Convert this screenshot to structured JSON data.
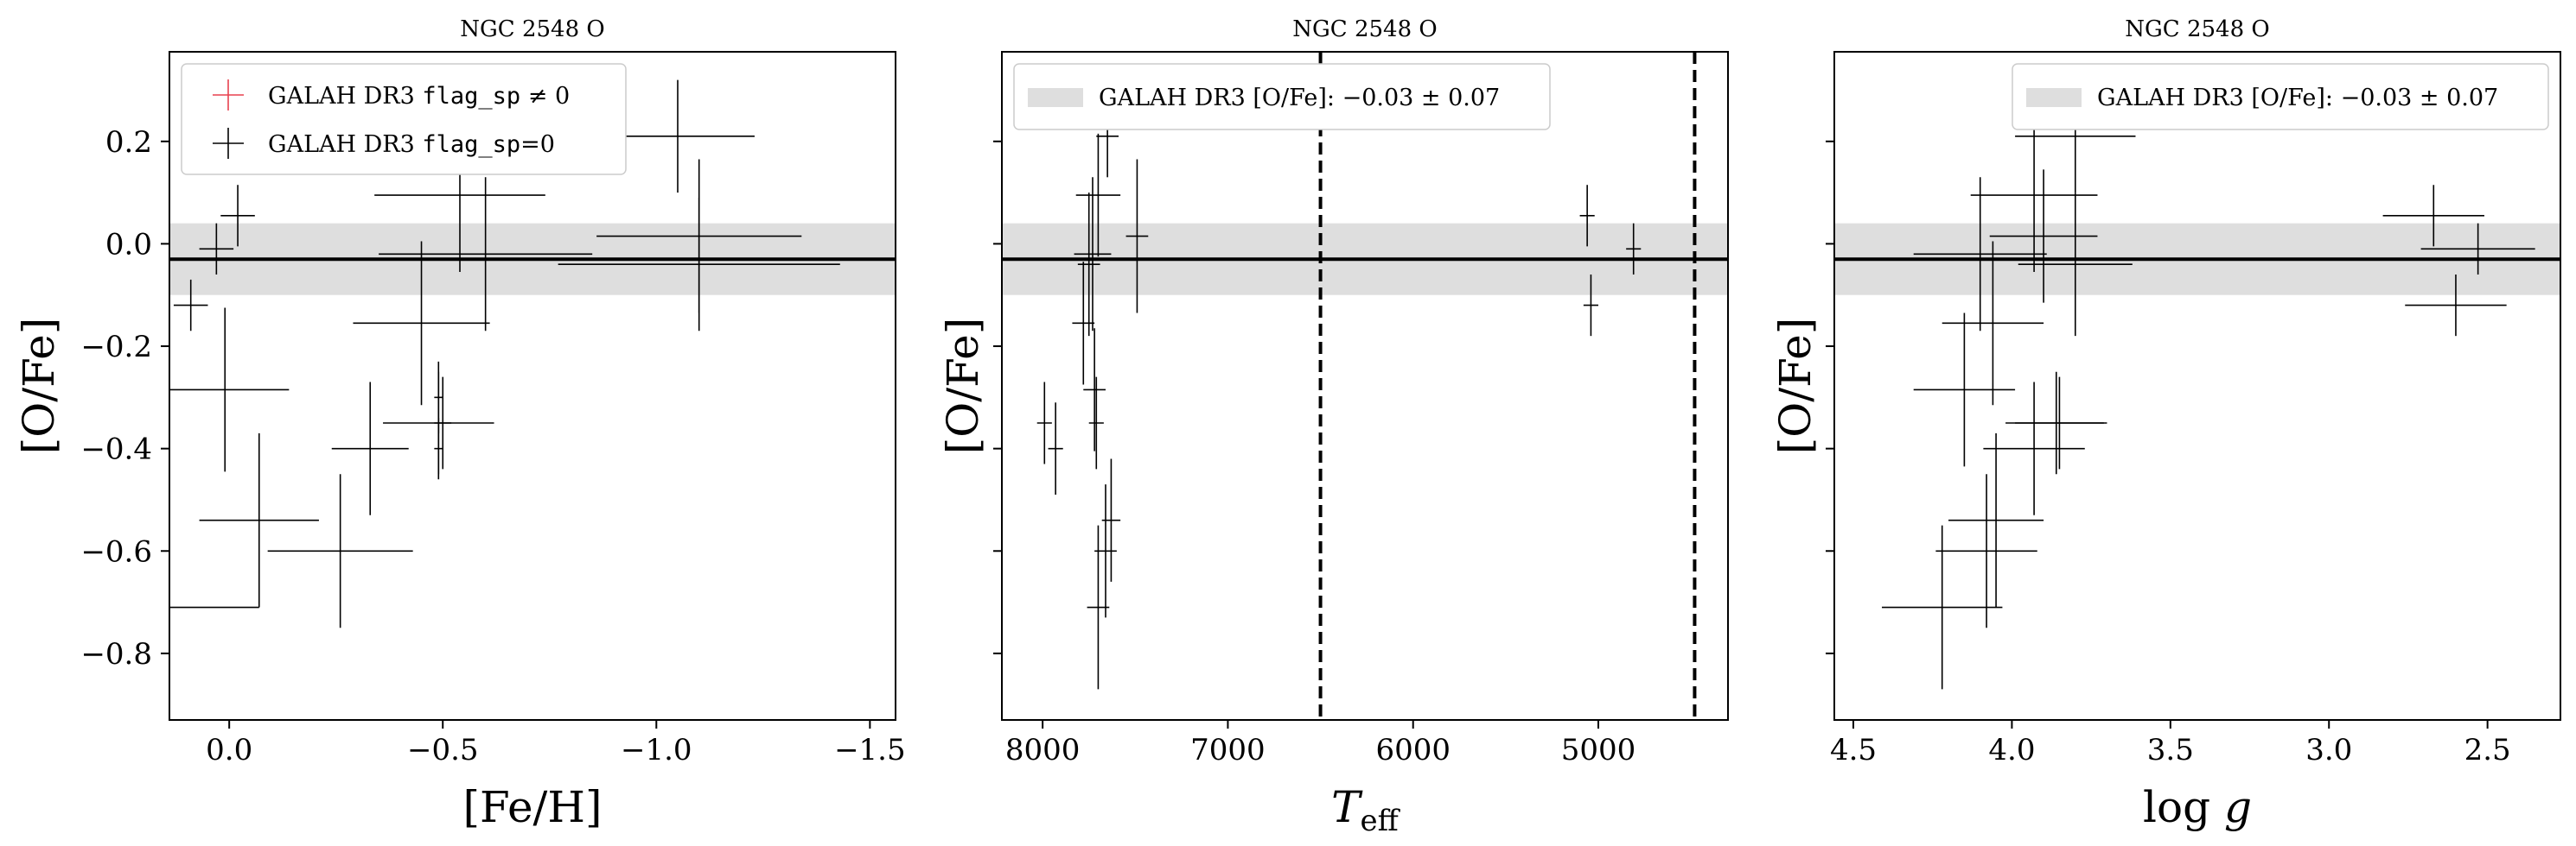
{
  "chart_data": [
    {
      "type": "scatter",
      "title": "NGC 2548 O",
      "xlabel": "[Fe/H]",
      "ylabel": "[O/Fe]",
      "xlim": [
        0.14,
        -1.56
      ],
      "ylim": [
        -0.93,
        0.375
      ],
      "x_inverted": true,
      "xticks": [
        0.0,
        -0.5,
        -1.0,
        -1.5
      ],
      "xtick_labels": [
        "0.0",
        "−0.5",
        "−1.0",
        "−1.5"
      ],
      "yticks": [
        0.2,
        0.0,
        -0.2,
        -0.4,
        -0.6,
        -0.8
      ],
      "ytick_labels": [
        "0.2",
        "0.0",
        "−0.2",
        "−0.4",
        "−0.6",
        "−0.8"
      ],
      "show_ytick_labels": true,
      "reference": {
        "value": -0.03,
        "error": 0.07
      },
      "legend": {
        "placement": "top-left",
        "entries": [
          {
            "pre": "GALAH DR3 ",
            "code": "flag_sp",
            "post": " ≠ 0",
            "color": "#e8414f"
          },
          {
            "pre": "GALAH DR3 ",
            "code": "flag_sp",
            "post": "=0",
            "color": "#000000"
          }
        ]
      },
      "series": [
        {
          "name": "GALAH DR3 flag_sp=0",
          "color": "#000000",
          "points": [
            {
              "x": 0.09,
              "y": -0.12,
              "xerr": 0.04,
              "yerr": 0.05
            },
            {
              "x": 0.03,
              "y": -0.01,
              "xerr": 0.04,
              "yerr": 0.05
            },
            {
              "x": -0.02,
              "y": 0.055,
              "xerr": 0.04,
              "yerr": 0.06
            },
            {
              "x": 0.01,
              "y": -0.285,
              "xerr": 0.15,
              "yerr": 0.16
            },
            {
              "x": 0.14,
              "y": -0.71,
              "xerr": 0.21,
              "yerr": 0.16
            },
            {
              "x": -0.07,
              "y": -0.54,
              "xerr": 0.14,
              "yerr": 0.17
            },
            {
              "x": -0.26,
              "y": -0.6,
              "xerr": 0.17,
              "yerr": 0.15
            },
            {
              "x": -0.33,
              "y": -0.4,
              "xerr": 0.09,
              "yerr": 0.13
            },
            {
              "x": -0.45,
              "y": -0.155,
              "xerr": 0.16,
              "yerr": 0.16
            },
            {
              "x": -0.49,
              "y": -0.35,
              "xerr": 0.13,
              "yerr": 0.1
            },
            {
              "x": -0.5,
              "y": -0.35,
              "xerr": 0.02,
              "yerr": 0.09
            },
            {
              "x": -0.49,
              "y": -0.3,
              "xerr": 0.01,
              "yerr": 0.07
            },
            {
              "x": -0.49,
              "y": -0.4,
              "xerr": 0.01,
              "yerr": 0.06
            },
            {
              "x": -0.54,
              "y": 0.095,
              "xerr": 0.2,
              "yerr": 0.15
            },
            {
              "x": -0.6,
              "y": -0.02,
              "xerr": 0.25,
              "yerr": 0.15
            },
            {
              "x": -1.05,
              "y": 0.21,
              "xerr": 0.18,
              "yerr": 0.11
            },
            {
              "x": -1.1,
              "y": 0.015,
              "xerr": 0.24,
              "yerr": 0.15
            },
            {
              "x": -1.1,
              "y": -0.04,
              "xerr": 0.33,
              "yerr": 0.13
            }
          ]
        }
      ]
    },
    {
      "type": "scatter",
      "title": "NGC 2548 O",
      "xlabel": "T_eff",
      "ylabel": "[O/Fe]",
      "xlim": [
        8220,
        4300
      ],
      "ylim": [
        -0.93,
        0.375
      ],
      "x_inverted": true,
      "xticks": [
        8000,
        7000,
        6000,
        5000
      ],
      "xtick_labels": [
        "8000",
        "7000",
        "6000",
        "5000"
      ],
      "yticks": [
        0.2,
        0.0,
        -0.2,
        -0.4,
        -0.6,
        -0.8
      ],
      "ytick_labels": [
        "0.2",
        "0.0",
        "−0.2",
        "−0.4",
        "−0.6",
        "−0.8"
      ],
      "show_ytick_labels": false,
      "reference": {
        "value": -0.03,
        "error": 0.07
      },
      "vlines": [
        6500,
        4480
      ],
      "legend": {
        "placement": "top-left",
        "entries": [
          {
            "pre": "GALAH DR3 [O/Fe]: ",
            "math": "−0.03 ± 0.07",
            "patch": true
          }
        ]
      },
      "series": [
        {
          "name": "GALAH DR3 flag_sp=0",
          "color": "#000000",
          "points": [
            {
              "x": 7990,
              "y": -0.35,
              "xerr": 40,
              "yerr": 0.08
            },
            {
              "x": 7930,
              "y": -0.4,
              "xerr": 40,
              "yerr": 0.09
            },
            {
              "x": 7650,
              "y": 0.21,
              "xerr": 60,
              "yerr": 0.08
            },
            {
              "x": 7700,
              "y": 0.095,
              "xerr": 120,
              "yerr": 0.12
            },
            {
              "x": 7730,
              "y": -0.02,
              "xerr": 100,
              "yerr": 0.15
            },
            {
              "x": 7490,
              "y": 0.015,
              "xerr": 60,
              "yerr": 0.15
            },
            {
              "x": 7750,
              "y": -0.04,
              "xerr": 60,
              "yerr": 0.14
            },
            {
              "x": 7780,
              "y": -0.155,
              "xerr": 60,
              "yerr": 0.12
            },
            {
              "x": 7720,
              "y": -0.285,
              "xerr": 60,
              "yerr": 0.12
            },
            {
              "x": 7710,
              "y": -0.35,
              "xerr": 40,
              "yerr": 0.09
            },
            {
              "x": 7630,
              "y": -0.54,
              "xerr": 50,
              "yerr": 0.12
            },
            {
              "x": 7660,
              "y": -0.6,
              "xerr": 60,
              "yerr": 0.13
            },
            {
              "x": 7700,
              "y": -0.71,
              "xerr": 60,
              "yerr": 0.16
            },
            {
              "x": 5060,
              "y": 0.055,
              "xerr": 40,
              "yerr": 0.06
            },
            {
              "x": 4810,
              "y": -0.01,
              "xerr": 40,
              "yerr": 0.05
            },
            {
              "x": 5040,
              "y": -0.12,
              "xerr": 40,
              "yerr": 0.06
            }
          ]
        }
      ]
    },
    {
      "type": "scatter",
      "title": "NGC 2548 O",
      "xlabel": "log g",
      "ylabel": "[O/Fe]",
      "xlim": [
        4.56,
        2.27
      ],
      "ylim": [
        -0.93,
        0.375
      ],
      "x_inverted": true,
      "xticks": [
        4.5,
        4.0,
        3.5,
        3.0,
        2.5
      ],
      "xtick_labels": [
        "4.5",
        "4.0",
        "3.5",
        "3.0",
        "2.5"
      ],
      "yticks": [
        0.2,
        0.0,
        -0.2,
        -0.4,
        -0.6,
        -0.8
      ],
      "ytick_labels": [
        "0.2",
        "0.0",
        "−0.2",
        "−0.4",
        "−0.6",
        "−0.8"
      ],
      "show_ytick_labels": false,
      "reference": {
        "value": -0.03,
        "error": 0.07
      },
      "legend": {
        "placement": "top-right",
        "entries": [
          {
            "pre": "GALAH DR3 [O/Fe]: ",
            "math": "−0.03 ± 0.07",
            "patch": true
          }
        ]
      },
      "series": [
        {
          "name": "GALAH DR3 flag_sp=0",
          "color": "#000000",
          "points": [
            {
              "x": 4.22,
              "y": -0.71,
              "xerr": 0.19,
              "yerr": 0.16
            },
            {
              "x": 4.08,
              "y": -0.6,
              "xerr": 0.16,
              "yerr": 0.15
            },
            {
              "x": 4.05,
              "y": -0.54,
              "xerr": 0.15,
              "yerr": 0.17
            },
            {
              "x": 4.15,
              "y": -0.285,
              "xerr": 0.16,
              "yerr": 0.15
            },
            {
              "x": 4.06,
              "y": -0.155,
              "xerr": 0.16,
              "yerr": 0.16
            },
            {
              "x": 3.93,
              "y": -0.4,
              "xerr": 0.16,
              "yerr": 0.13
            },
            {
              "x": 3.86,
              "y": -0.35,
              "xerr": 0.16,
              "yerr": 0.1
            },
            {
              "x": 3.85,
              "y": -0.35,
              "xerr": 0.14,
              "yerr": 0.09
            },
            {
              "x": 3.8,
              "y": -0.04,
              "xerr": 0.18,
              "yerr": 0.14
            },
            {
              "x": 4.1,
              "y": -0.02,
              "xerr": 0.21,
              "yerr": 0.15
            },
            {
              "x": 3.9,
              "y": 0.015,
              "xerr": 0.17,
              "yerr": 0.13
            },
            {
              "x": 3.93,
              "y": 0.095,
              "xerr": 0.2,
              "yerr": 0.15
            },
            {
              "x": 3.8,
              "y": 0.21,
              "xerr": 0.19,
              "yerr": 0.11
            },
            {
              "x": 2.67,
              "y": 0.055,
              "xerr": 0.16,
              "yerr": 0.06
            },
            {
              "x": 2.53,
              "y": -0.01,
              "xerr": 0.18,
              "yerr": 0.05
            },
            {
              "x": 2.6,
              "y": -0.12,
              "xerr": 0.16,
              "yerr": 0.06
            }
          ]
        }
      ]
    }
  ]
}
